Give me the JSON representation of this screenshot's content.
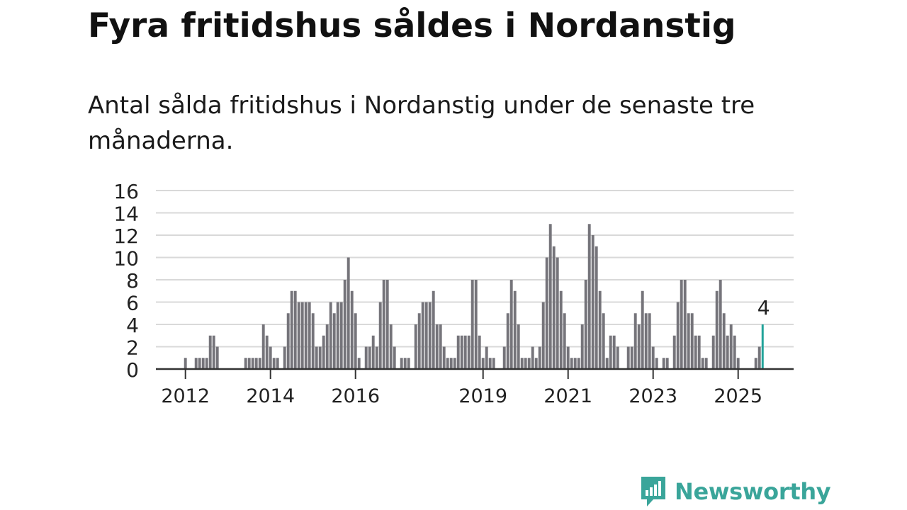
{
  "chart_data": {
    "type": "bar",
    "title": "Fyra fritidshus såldes i Nordanstig",
    "subtitle": "Antal sålda fritidshus i Nordanstig under de senaste tre månaderna.",
    "x_start": "2012-01",
    "x_labels": [
      "2012",
      "2014",
      "2016",
      "2019",
      "2021",
      "2023",
      "2025"
    ],
    "y_ticks": [
      0,
      2,
      4,
      6,
      8,
      10,
      12,
      14,
      16
    ],
    "ylim": [
      0,
      16
    ],
    "grid": true,
    "highlight_label": "4",
    "colors": {
      "bar": "#75747a",
      "highlight": "#22a39a",
      "grid": "#d9d9d9",
      "axis": "#333333"
    },
    "values": [
      1,
      0,
      0,
      1,
      1,
      1,
      1,
      3,
      3,
      2,
      0,
      0,
      0,
      0,
      0,
      0,
      0,
      1,
      1,
      1,
      1,
      1,
      4,
      3,
      2,
      1,
      1,
      0,
      2,
      5,
      7,
      7,
      6,
      6,
      6,
      6,
      5,
      2,
      2,
      3,
      4,
      6,
      5,
      6,
      6,
      8,
      10,
      7,
      5,
      1,
      0,
      2,
      2,
      3,
      2,
      6,
      8,
      8,
      4,
      2,
      0,
      1,
      1,
      1,
      0,
      4,
      5,
      6,
      6,
      6,
      7,
      4,
      4,
      2,
      1,
      1,
      1,
      3,
      3,
      3,
      3,
      8,
      8,
      3,
      1,
      2,
      1,
      1,
      0,
      0,
      2,
      5,
      8,
      7,
      4,
      1,
      1,
      1,
      2,
      1,
      2,
      6,
      10,
      13,
      11,
      10,
      7,
      5,
      2,
      1,
      1,
      1,
      4,
      8,
      13,
      12,
      11,
      7,
      5,
      1,
      3,
      3,
      2,
      0,
      0,
      2,
      2,
      5,
      4,
      7,
      5,
      5,
      2,
      1,
      0,
      1,
      1,
      0,
      3,
      6,
      8,
      8,
      5,
      5,
      3,
      3,
      1,
      1,
      0,
      3,
      7,
      8,
      5,
      3,
      4,
      3,
      1,
      0,
      0,
      0,
      0,
      1,
      2,
      4
    ]
  },
  "brand": {
    "name": "Newsworthy",
    "icon": "newsworthy-logo-icon"
  }
}
